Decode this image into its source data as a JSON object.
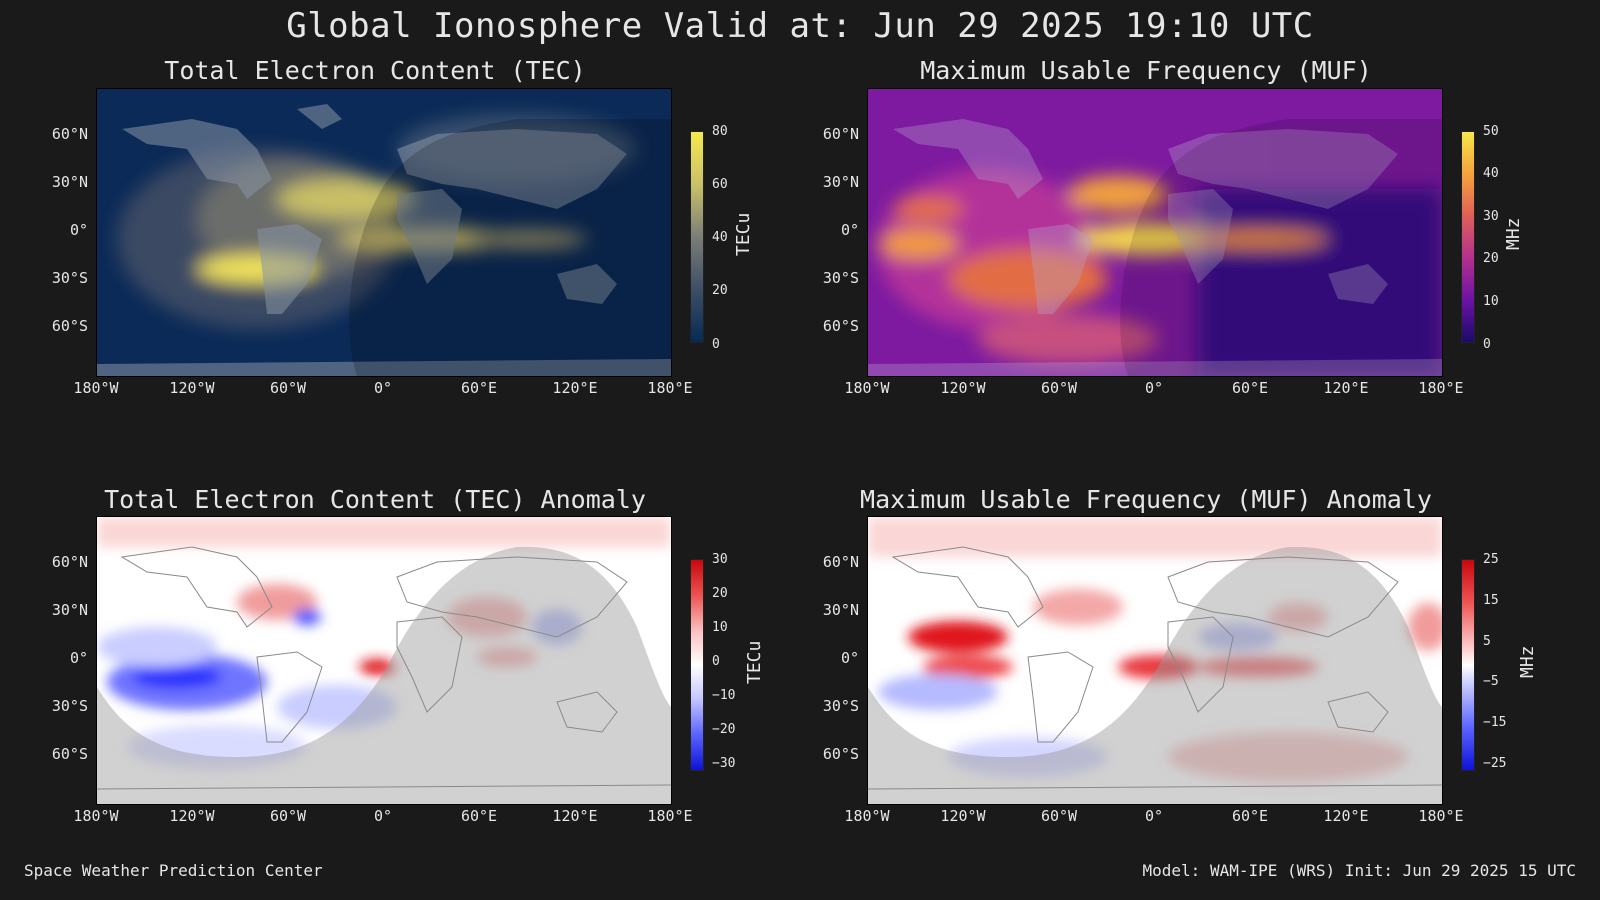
{
  "title": "Global Ionosphere Valid at: Jun 29 2025 19:10 UTC",
  "footer_left": "Space Weather Prediction Center",
  "footer_right": "Model: WAM-IPE (WRS) Init: Jun 29 2025 15 UTC",
  "lat_labels": [
    "60°N",
    "30°N",
    "0°",
    "30°S",
    "60°S"
  ],
  "lon_labels": [
    "180°W",
    "120°W",
    "60°W",
    "0°",
    "60°E",
    "120°E",
    "180°E"
  ],
  "panels": {
    "tec": {
      "title": "Total Electron Content (TEC)",
      "unit": "TECu",
      "ticks": [
        "80",
        "60",
        "40",
        "20",
        "0"
      ]
    },
    "muf": {
      "title": "Maximum Usable Frequency (MUF)",
      "unit": "MHz",
      "ticks": [
        "50",
        "40",
        "30",
        "20",
        "10",
        "0"
      ]
    },
    "tec_anom": {
      "title": "Total Electron Content (TEC) Anomaly",
      "unit": "TECu",
      "ticks": [
        "30",
        "20",
        "10",
        "0",
        "−10",
        "−20",
        "−30"
      ]
    },
    "muf_anom": {
      "title": "Maximum Usable Frequency (MUF) Anomaly",
      "unit": "MHz",
      "ticks": [
        "25",
        "15",
        "5",
        "−5",
        "−15",
        "−25"
      ]
    }
  },
  "colors": {
    "background": "#1a1a1a",
    "tec_low": "#062a55",
    "tec_high": "#f6e94e",
    "muf_low": "#2b0a6e",
    "muf_high": "#f9e54a",
    "anom_neg": "#1f2bff",
    "anom_pos": "#e0161c"
  }
}
